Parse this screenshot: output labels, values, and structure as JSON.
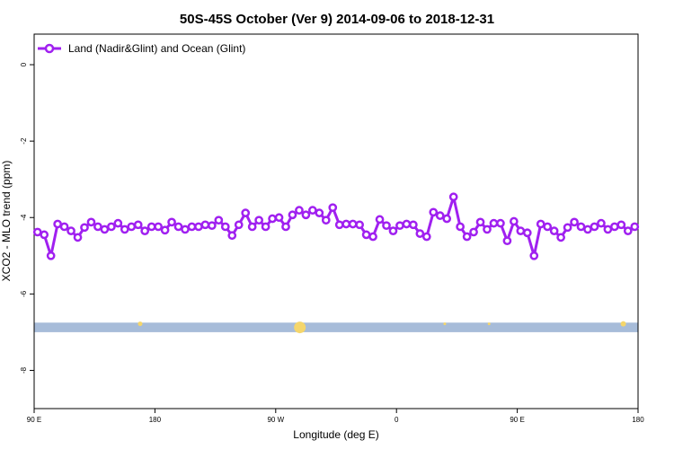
{
  "chart_data": {
    "type": "line",
    "title": "50S-45S October (Ver 9)   2014-09-06 to 2018-12-31",
    "xlabel": "Longitude (deg E)",
    "ylabel": "XCO2 - MLO trend (ppm)",
    "ylim": [
      -9.0,
      0.8
    ],
    "x_ticks": [
      {
        "pos": 0,
        "label": "90 E"
      },
      {
        "pos": 90,
        "label": "180"
      },
      {
        "pos": 180,
        "label": "90 W"
      },
      {
        "pos": 270,
        "label": "0"
      },
      {
        "pos": 360,
        "label": "90 E"
      },
      {
        "pos": 450,
        "label": "180"
      }
    ],
    "y_ticks": [
      0,
      -2,
      -4,
      -6,
      -8
    ],
    "legend": {
      "position": "top-left",
      "entries": [
        {
          "name": "Land (Nadir&Glint) and Ocean (Glint)",
          "color": "#a020f0"
        }
      ]
    },
    "series": [
      {
        "name": "Land (Nadir&Glint) and Ocean (Glint)",
        "color": "#a020f0",
        "x": [
          2.5,
          7.5,
          12.5,
          17.5,
          22.5,
          27.5,
          32.5,
          37.5,
          42.5,
          47.5,
          52.5,
          57.5,
          62.5,
          67.5,
          72.5,
          77.5,
          82.5,
          87.5,
          92.5,
          97.5,
          102.5,
          107.5,
          112.5,
          117.5,
          122.5,
          127.5,
          132.5,
          137.5,
          142.5,
          147.5,
          152.5,
          157.5,
          162.5,
          167.5,
          172.5,
          177.5,
          182.5,
          187.5,
          192.5,
          197.5,
          202.5,
          207.5,
          212.5,
          217.5,
          222.5,
          227.5,
          232.5,
          237.5,
          242.5,
          247.5,
          252.5,
          257.5,
          262.5,
          267.5,
          272.5,
          277.5,
          282.5,
          287.5,
          292.5,
          297.5,
          302.5,
          307.5,
          312.5,
          317.5,
          322.5,
          327.5,
          332.5,
          337.5,
          342.5,
          347.5,
          352.5,
          357.5,
          362.5,
          367.5,
          372.5,
          377.5,
          382.5,
          387.5,
          392.5,
          397.5,
          402.5,
          407.5,
          412.5,
          417.5,
          422.5,
          427.5,
          432.5,
          437.5,
          442.5,
          447.5
        ],
        "values": [
          -4.38,
          -4.45,
          -5.0,
          -4.17,
          -4.24,
          -4.35,
          -4.52,
          -4.26,
          -4.12,
          -4.24,
          -4.31,
          -4.24,
          -4.15,
          -4.31,
          -4.24,
          -4.19,
          -4.35,
          -4.24,
          -4.24,
          -4.33,
          -4.12,
          -4.24,
          -4.31,
          -4.24,
          -4.24,
          -4.19,
          -4.21,
          -4.07,
          -4.24,
          -4.47,
          -4.19,
          -3.88,
          -4.24,
          -4.07,
          -4.24,
          -4.03,
          -4.0,
          -4.24,
          -3.93,
          -3.81,
          -3.93,
          -3.81,
          -3.88,
          -4.07,
          -3.74,
          -4.19,
          -4.17,
          -4.17,
          -4.19,
          -4.45,
          -4.5,
          -4.05,
          -4.21,
          -4.35,
          -4.21,
          -4.17,
          -4.19,
          -4.42,
          -4.5,
          -3.86,
          -3.95,
          -4.03,
          -3.46,
          -4.24,
          -4.5,
          -4.38,
          -4.12,
          -4.31,
          -4.15,
          -4.15,
          -4.61,
          -4.1,
          -4.35,
          -4.4,
          -5.0,
          -4.17,
          -4.24,
          -4.35,
          -4.52,
          -4.26,
          -4.12,
          -4.24,
          -4.31,
          -4.24,
          -4.15,
          -4.31,
          -4.24,
          -4.19,
          -4.35,
          -4.24
        ]
      }
    ],
    "band": {
      "y_top": -6.75,
      "y_bottom": -7.0,
      "color": "#a7bcd9"
    },
    "band_markers": {
      "color": "#f5d66b",
      "points": [
        {
          "x": 79,
          "size": 4
        },
        {
          "x": 198,
          "size": 12
        },
        {
          "x": 306,
          "size": 2
        },
        {
          "x": 339,
          "size": 2
        },
        {
          "x": 439,
          "size": 5
        }
      ]
    }
  }
}
